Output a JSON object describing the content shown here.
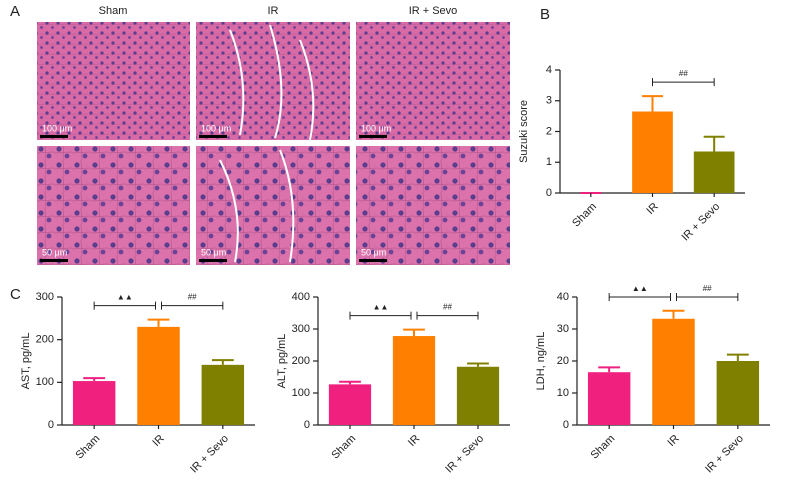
{
  "panel_a": {
    "label": "A",
    "columns": [
      "Sham",
      "IR",
      "IR + Sevo"
    ],
    "scale_bars": [
      "100 μm",
      "50 μm"
    ]
  },
  "chart_data": [
    {
      "type": "bar",
      "panel_label": "B",
      "ylabel": "Suzuki score",
      "categories": [
        "Sham",
        "IR",
        "IR + Sevo"
      ],
      "values": [
        0,
        2.65,
        1.35
      ],
      "errors": [
        0,
        0.5,
        0.48
      ],
      "colors": [
        "#f0207f",
        "#ff8000",
        "#808000"
      ],
      "ylim": [
        0,
        4
      ],
      "yticks": [
        0,
        1,
        2,
        3,
        4
      ],
      "annotations": [
        {
          "text": "##",
          "between": [
            "IR",
            "IR + Sevo"
          ]
        }
      ]
    },
    {
      "type": "bar",
      "panel_label": "C",
      "ylabel": "AST, pg/mL",
      "categories": [
        "Sham",
        "IR",
        "IR + Sevo"
      ],
      "values": [
        103,
        230,
        141
      ],
      "errors": [
        7,
        17,
        11
      ],
      "colors": [
        "#f0207f",
        "#ff8000",
        "#808000"
      ],
      "ylim": [
        0,
        300
      ],
      "yticks": [
        0,
        100,
        200,
        300
      ],
      "annotations": [
        {
          "text": "▲▲",
          "between": [
            "Sham",
            "IR"
          ]
        },
        {
          "text": "##",
          "between": [
            "IR",
            "IR + Sevo"
          ]
        }
      ]
    },
    {
      "type": "bar",
      "ylabel": "ALT, pg/mL",
      "categories": [
        "Sham",
        "IR",
        "IR + Sevo"
      ],
      "values": [
        127,
        278,
        182
      ],
      "errors": [
        8,
        20,
        10
      ],
      "colors": [
        "#f0207f",
        "#ff8000",
        "#808000"
      ],
      "ylim": [
        0,
        400
      ],
      "yticks": [
        0,
        100,
        200,
        300,
        400
      ],
      "annotations": [
        {
          "text": "▲▲",
          "between": [
            "Sham",
            "IR"
          ]
        },
        {
          "text": "##",
          "between": [
            "IR",
            "IR + Sevo"
          ]
        }
      ]
    },
    {
      "type": "bar",
      "ylabel": "LDH, ng/mL",
      "categories": [
        "Sham",
        "IR",
        "IR + Sevo"
      ],
      "values": [
        16.5,
        33.2,
        20
      ],
      "errors": [
        1.5,
        2.5,
        2
      ],
      "colors": [
        "#f0207f",
        "#ff8000",
        "#808000"
      ],
      "ylim": [
        0,
        40
      ],
      "yticks": [
        0,
        10,
        20,
        30,
        40
      ],
      "annotations": [
        {
          "text": "▲▲",
          "between": [
            "Sham",
            "IR"
          ]
        },
        {
          "text": "##",
          "between": [
            "IR",
            "IR + Sevo"
          ]
        }
      ]
    }
  ]
}
